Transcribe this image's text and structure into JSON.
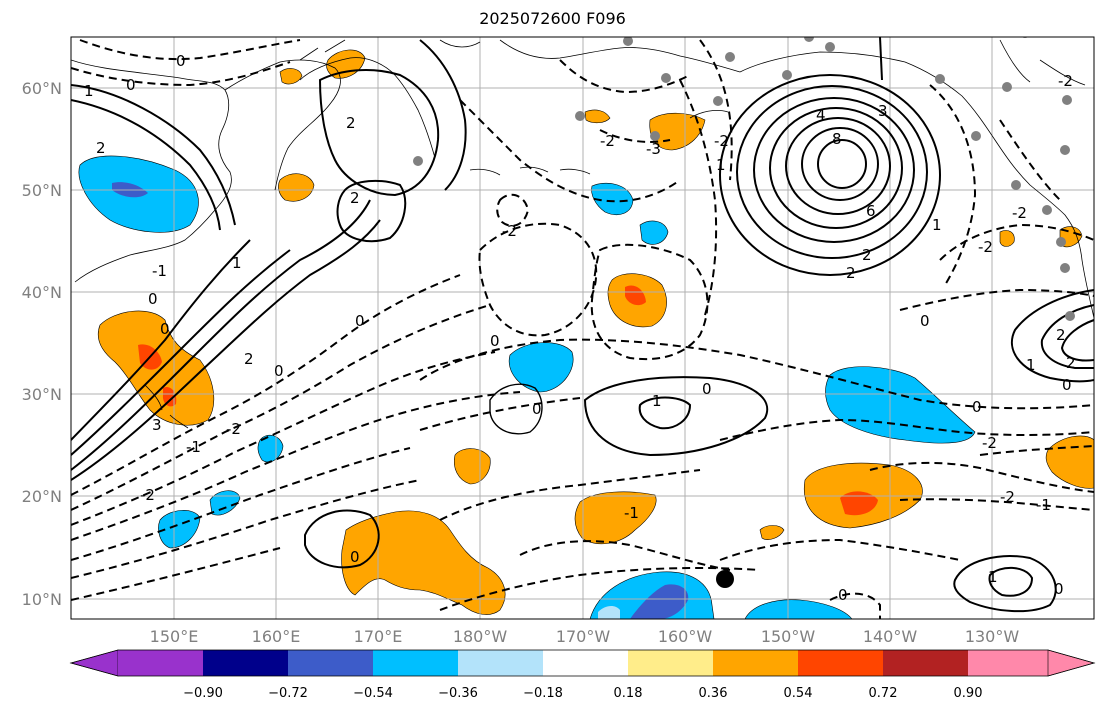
{
  "title": "2025072600 F096",
  "lat_labels": [
    "10°N",
    "20°N",
    "30°N",
    "40°N",
    "50°N",
    "60°N"
  ],
  "lon_labels": [
    "150°E",
    "160°E",
    "170°E",
    "180°W",
    "170°W",
    "160°W",
    "150°W",
    "140°W",
    "130°W"
  ],
  "colorbar": {
    "labels": [
      "−0.90",
      "−0.72",
      "−0.54",
      "−0.36",
      "−0.18",
      "0.18",
      "0.36",
      "0.54",
      "0.72",
      "0.90"
    ],
    "colors": [
      "#9932cc",
      "#00008b",
      "#3d5cc9",
      "#00bfff",
      "#b3e3fa",
      "#ffffff",
      "#ffed8a",
      "#ffa500",
      "#ff4500",
      "#b22222",
      "#ff88aa"
    ]
  },
  "contour_labels": {
    "a": "0",
    "b": "1",
    "c": "2",
    "d": "4",
    "e": "8",
    "f": "6",
    "g": "3",
    "h": "-1",
    "i": "-2",
    "j": "-3"
  },
  "map_colors": {
    "blue": "#00bfff",
    "dark_blue": "#3d5cc9",
    "light_blue": "#b3e3fa",
    "orange": "#ffa500",
    "red_orange": "#ff4500",
    "grid": "#b0b0b0",
    "contour": "#000000",
    "station": "#808080"
  }
}
